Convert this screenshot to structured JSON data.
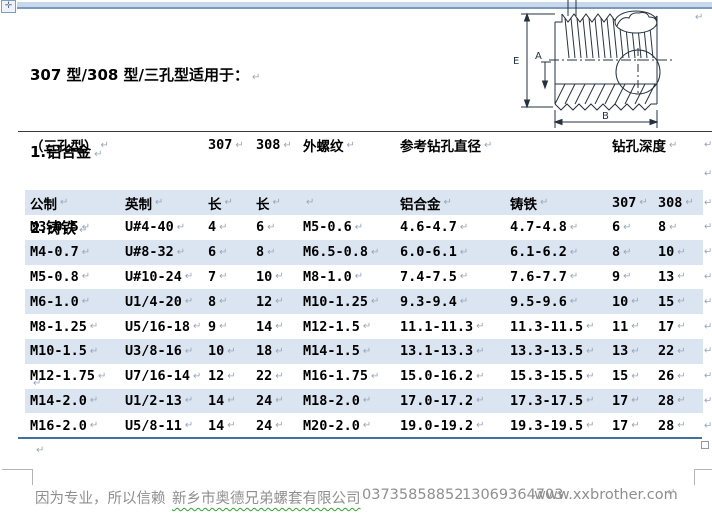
{
  "marks": {
    "para": "↵"
  },
  "handle": {
    "glyph": "✛"
  },
  "doc": {
    "title": "307 型/308 型/三孔型适用于：",
    "items": [
      "1.铝合金",
      "2.铸铁",
      "3.软钢"
    ]
  },
  "drawing": {
    "dim_e": "E",
    "dim_a": "A",
    "dim_b": "B"
  },
  "table": {
    "caption": {
      "type_label": "（三孔型）",
      "col_307": "307",
      "col_308": "308",
      "ext_thread": "外螺纹",
      "ref_drill": "参考钻孔直径",
      "drill_depth": "钻孔深度"
    },
    "headers": [
      "公制",
      "英制",
      "长",
      "长",
      "",
      "铝合金",
      "铸铁",
      "307",
      "308"
    ],
    "rows": [
      [
        "M3-0.5",
        "U#4-40",
        "4",
        "6",
        "M5-0.6",
        "4.6-4.7",
        "4.7-4.8",
        "6",
        "8"
      ],
      [
        "M4-0.7",
        "U#8-32",
        "6",
        "8",
        "M6.5-0.8",
        "6.0-6.1",
        "6.1-6.2",
        "8",
        "10"
      ],
      [
        "M5-0.8",
        "U#10-24",
        "7",
        "10",
        "M8-1.0",
        "7.4-7.5",
        "7.6-7.7",
        "9",
        "13"
      ],
      [
        "M6-1.0",
        "U1/4-20",
        "8",
        "12",
        "M10-1.25",
        "9.3-9.4",
        "9.5-9.6",
        "10",
        "15"
      ],
      [
        "M8-1.25",
        "U5/16-18",
        "9",
        "14",
        "M12-1.5",
        "11.1-11.3",
        "11.3-11.5",
        "11",
        "17"
      ],
      [
        "M10-1.5",
        "U3/8-16",
        "10",
        "18",
        "M14-1.5",
        "13.1-13.3",
        "13.3-13.5",
        "13",
        "22"
      ],
      [
        "M12-1.75",
        "U7/16-14",
        "12",
        "22",
        "M16-1.75",
        "15.0-16.2",
        "15.3-15.5",
        "15",
        "26"
      ],
      [
        "M14-2.0",
        "U1/2-13",
        "14",
        "24",
        "M18-2.0",
        "17.0-17.2",
        "17.3-17.5",
        "17",
        "28"
      ],
      [
        "M16-2.0",
        "U5/8-11",
        "14",
        "24",
        "M20-2.0",
        "19.0-19.2",
        "19.3-19.5",
        "17",
        "28"
      ]
    ]
  },
  "footer": {
    "slogan": "因为专业，所以信赖",
    "company": "新乡市奥德兄弟螺套有限公司",
    "phone": "03735858852",
    "mobile": "13069364703",
    "website": "www.xxbrother.com"
  },
  "colors": {
    "stripe": "#dbe5f1",
    "top_bar": "#c9d7ea",
    "top_bar_edge": "#7a99bd",
    "table_bottom_border": "#3f72a0",
    "footer_text": "#8f8f8f",
    "squiggle": "#2ba32b",
    "format_mark": "#98a6bb"
  }
}
